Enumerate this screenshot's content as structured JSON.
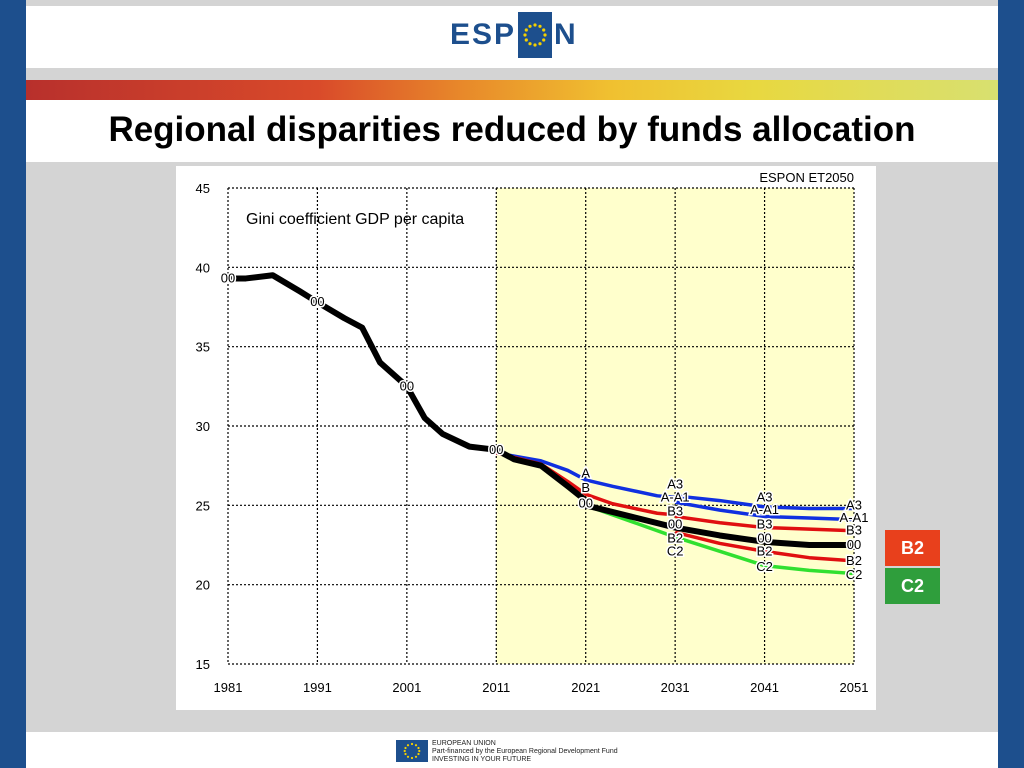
{
  "header": {
    "logo_left": "ESP",
    "logo_right": "N"
  },
  "slide": {
    "title": "Regional disparities reduced by funds allocation"
  },
  "chart_data": {
    "type": "line",
    "title": "Gini coefficient GDP per capita",
    "source_label": "ESPON ET2050",
    "xlim": [
      1981,
      2051
    ],
    "ylim": [
      15,
      45
    ],
    "x_ticks": [
      "1981",
      "1991",
      "2001",
      "2011",
      "2021",
      "2031",
      "2041",
      "2051"
    ],
    "y_ticks": [
      "45",
      "40",
      "35",
      "30",
      "25",
      "20",
      "15"
    ],
    "grid": true,
    "shaded_region": [
      2011,
      2051
    ],
    "historical": {
      "name": "00",
      "points": [
        [
          1981,
          39.3
        ],
        [
          1983,
          39.3
        ],
        [
          1986,
          39.5
        ],
        [
          1989,
          38.5
        ],
        [
          1991,
          37.8
        ],
        [
          1994,
          36.8
        ],
        [
          1996,
          36.2
        ],
        [
          1998,
          34
        ],
        [
          2001,
          32.5
        ],
        [
          2003,
          30.5
        ],
        [
          2005,
          29.5
        ],
        [
          2008,
          28.7
        ],
        [
          2011,
          28.5
        ]
      ]
    },
    "series": [
      {
        "name": "A",
        "color": "#1030e0",
        "points": [
          [
            2011,
            28.3
          ],
          [
            2016,
            27.8
          ],
          [
            2019,
            27.2
          ],
          [
            2021,
            26.6
          ],
          [
            2024,
            26.2
          ],
          [
            2029,
            25.6
          ],
          [
            2031,
            25.5
          ]
        ]
      },
      {
        "name": "A3",
        "color": "#1030e0",
        "points": [
          [
            2031,
            25.6
          ],
          [
            2036,
            25.3
          ],
          [
            2041,
            24.9
          ],
          [
            2046,
            24.8
          ],
          [
            2051,
            24.8
          ]
        ]
      },
      {
        "name": "A-A1",
        "color": "#1030e0",
        "points": [
          [
            2031,
            25.2
          ],
          [
            2036,
            24.7
          ],
          [
            2041,
            24.3
          ],
          [
            2046,
            24.2
          ],
          [
            2051,
            24.1
          ]
        ]
      },
      {
        "name": "B",
        "color": "#e01010",
        "points": [
          [
            2011,
            28.3
          ],
          [
            2016,
            27.6
          ],
          [
            2019,
            26.5
          ],
          [
            2021,
            25.7
          ],
          [
            2024,
            25.1
          ],
          [
            2029,
            24.5
          ],
          [
            2031,
            24.4
          ]
        ]
      },
      {
        "name": "B3",
        "color": "#e01010",
        "points": [
          [
            2031,
            24.3
          ],
          [
            2036,
            23.9
          ],
          [
            2041,
            23.6
          ],
          [
            2046,
            23.5
          ],
          [
            2051,
            23.4
          ]
        ]
      },
      {
        "name": "B2",
        "color": "#e01010",
        "points": [
          [
            2031,
            23.3
          ],
          [
            2036,
            22.6
          ],
          [
            2041,
            22.1
          ],
          [
            2046,
            21.7
          ],
          [
            2051,
            21.5
          ]
        ]
      },
      {
        "name": "C2",
        "color": "#30e030",
        "points": [
          [
            2021,
            25.0
          ],
          [
            2026,
            24.0
          ],
          [
            2031,
            23.0
          ],
          [
            2036,
            22.1
          ],
          [
            2041,
            21.2
          ],
          [
            2046,
            20.9
          ],
          [
            2051,
            20.7
          ]
        ]
      },
      {
        "name": "00",
        "color": "#000000",
        "points": [
          [
            2011,
            28.5
          ],
          [
            2013,
            27.9
          ],
          [
            2016,
            27.5
          ],
          [
            2019,
            26.2
          ],
          [
            2021,
            25.3
          ]
        ]
      },
      {
        "name": "00",
        "color": "#000000",
        "points": [
          [
            2021,
            25.0
          ],
          [
            2026,
            24.3
          ],
          [
            2031,
            23.6
          ],
          [
            2036,
            23.1
          ],
          [
            2041,
            22.7
          ],
          [
            2046,
            22.5
          ],
          [
            2051,
            22.5
          ]
        ]
      }
    ],
    "annotations": [
      {
        "text": "00",
        "x": 1981,
        "y": 39.3
      },
      {
        "text": "00",
        "x": 1991,
        "y": 37.8
      },
      {
        "text": "00",
        "x": 2001,
        "y": 32.5
      },
      {
        "text": "00",
        "x": 2011,
        "y": 28.5
      },
      {
        "text": "A",
        "x": 2021,
        "y": 27.0
      },
      {
        "text": "B",
        "x": 2021,
        "y": 26.1
      },
      {
        "text": "00",
        "x": 2021,
        "y": 25.1
      },
      {
        "text": "A3",
        "x": 2031,
        "y": 26.3
      },
      {
        "text": "A-A1",
        "x": 2031,
        "y": 25.5
      },
      {
        "text": "B3",
        "x": 2031,
        "y": 24.6
      },
      {
        "text": "00",
        "x": 2031,
        "y": 23.8
      },
      {
        "text": "B2",
        "x": 2031,
        "y": 22.9
      },
      {
        "text": "C2",
        "x": 2031,
        "y": 22.1
      },
      {
        "text": "A3",
        "x": 2041,
        "y": 25.5
      },
      {
        "text": "A-A1",
        "x": 2041,
        "y": 24.7
      },
      {
        "text": "B3",
        "x": 2041,
        "y": 23.8
      },
      {
        "text": "00",
        "x": 2041,
        "y": 22.9
      },
      {
        "text": "B2",
        "x": 2041,
        "y": 22.1
      },
      {
        "text": "C2",
        "x": 2041,
        "y": 21.1
      },
      {
        "text": "A3",
        "x": 2051,
        "y": 25.0
      },
      {
        "text": "A-A1",
        "x": 2051,
        "y": 24.2
      },
      {
        "text": "B3",
        "x": 2051,
        "y": 23.4
      },
      {
        "text": "00",
        "x": 2051,
        "y": 22.5
      },
      {
        "text": "B2",
        "x": 2051,
        "y": 21.5
      },
      {
        "text": "C2",
        "x": 2051,
        "y": 20.6
      }
    ]
  },
  "legend": [
    {
      "label": "B2",
      "color": "#e8401c"
    },
    {
      "label": "C2",
      "color": "#2f9e3c"
    }
  ],
  "footer": {
    "line1": "EUROPEAN UNION",
    "line2": "Part-financed by the European Regional Development Fund",
    "line3": "INVESTING IN YOUR FUTURE"
  }
}
